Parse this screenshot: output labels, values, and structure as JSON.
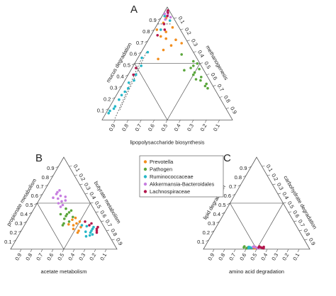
{
  "chart_data": [
    {
      "type": "scatter",
      "panel": "A",
      "subtype": "ternary",
      "axes": {
        "left": {
          "label": "mucus degradation",
          "ticks": [
            "0.1",
            "0.2",
            "0.3",
            "0.4",
            "0.5",
            "0.6",
            "0.7",
            "0.8",
            "0.9"
          ]
        },
        "right": {
          "label": "methanogenesis",
          "ticks": [
            "0.1",
            "0.2",
            "0.3",
            "0.4",
            "0.5",
            "0.6",
            "0.7",
            "0.8",
            "0.9"
          ]
        },
        "bottom": {
          "label": "lipopolysaccharide biosynthesis",
          "ticks": [
            "0.9",
            "0.8",
            "0.7",
            "0.6",
            "0.5",
            "0.4",
            "0.3",
            "0.2",
            "0.1"
          ]
        }
      },
      "grid": true,
      "dashed_reference_lines": true,
      "series": [
        {
          "name": "Prevotella",
          "color": "#f28e1e",
          "points": [
            [
              0.78,
              0.12
            ],
            [
              0.74,
              0.18
            ],
            [
              0.71,
              0.08
            ],
            [
              0.82,
              0.05
            ],
            [
              0.86,
              0.1
            ],
            [
              0.66,
              0.14
            ],
            [
              0.62,
              0.22
            ],
            [
              0.54,
              0.3
            ],
            [
              0.68,
              0.05
            ],
            [
              0.72,
              0.15
            ],
            [
              0.9,
              0.06
            ],
            [
              0.8,
              0.18
            ]
          ]
        },
        {
          "name": "Pathogen",
          "color": "#5aa63c",
          "points": [
            [
              0.52,
              0.04
            ],
            [
              0.48,
              0.06
            ],
            [
              0.45,
              0.03
            ],
            [
              0.42,
              0.08
            ],
            [
              0.38,
              0.05
            ],
            [
              0.35,
              0.07
            ],
            [
              0.32,
              0.04
            ],
            [
              0.3,
              0.06
            ],
            [
              0.28,
              0.05
            ],
            [
              0.4,
              0.1
            ],
            [
              0.5,
              0.02
            ],
            [
              0.46,
              0.09
            ],
            [
              0.36,
              0.1
            ],
            [
              0.44,
              0.15
            ],
            [
              0.58,
              0.1
            ]
          ]
        },
        {
          "name": "Ruminococcaceae",
          "color": "#27b7c8",
          "points": [
            [
              0.92,
              0.06
            ],
            [
              0.88,
              0.04
            ],
            [
              0.8,
              0.15
            ],
            [
              0.6,
              0.35
            ],
            [
              0.55,
              0.42
            ],
            [
              0.48,
              0.46
            ],
            [
              0.4,
              0.54
            ],
            [
              0.35,
              0.58
            ],
            [
              0.33,
              0.63
            ],
            [
              0.25,
              0.7
            ],
            [
              0.18,
              0.78
            ],
            [
              0.12,
              0.84
            ],
            [
              0.1,
              0.86
            ],
            [
              0.08,
              0.9
            ],
            [
              0.06,
              0.92
            ],
            [
              0.22,
              0.74
            ],
            [
              0.28,
              0.66
            ]
          ]
        },
        {
          "name": "Akkermansia-Bacteroidales",
          "color": "#c77ee0",
          "points": [
            [
              0.96,
              0.02
            ],
            [
              0.93,
              0.03
            ],
            [
              0.91,
              0.02
            ],
            [
              0.94,
              0.05
            ],
            [
              0.89,
              0.07
            ]
          ]
        },
        {
          "name": "Lachnospiraceae",
          "color": "#b3174d",
          "points": [
            [
              0.97,
              0.01
            ],
            [
              0.95,
              0.02
            ],
            [
              0.92,
              0.04
            ],
            [
              0.85,
              0.1
            ],
            [
              0.8,
              0.12
            ],
            [
              0.46,
              0.51
            ],
            [
              0.4,
              0.56
            ],
            [
              0.75,
              0.2
            ]
          ]
        }
      ]
    },
    {
      "type": "scatter",
      "panel": "B",
      "subtype": "ternary",
      "axes": {
        "left": {
          "label": "propionate metabolism",
          "ticks": [
            "0.1",
            "0.2",
            "0.3",
            "0.4",
            "0.5",
            "0.6",
            "0.7",
            "0.8",
            "0.9"
          ]
        },
        "right": {
          "label": "butyrate metabolism",
          "ticks": [
            "0.1",
            "0.2",
            "0.3",
            "0.4",
            "0.5",
            "0.6",
            "0.7",
            "0.8",
            "0.9"
          ]
        },
        "bottom": {
          "label": "acetate metabolism",
          "ticks": [
            "0.9",
            "0.8",
            "0.7",
            "0.6",
            "0.5",
            "0.4",
            "0.3",
            "0.2",
            "0.1"
          ]
        }
      },
      "grid": true,
      "series": [
        {
          "name": "Prevotella",
          "color": "#f28e1e",
          "points": [
            [
              0.3,
              0.2
            ],
            [
              0.28,
              0.24
            ],
            [
              0.26,
              0.28
            ],
            [
              0.32,
              0.26
            ],
            [
              0.22,
              0.3
            ],
            [
              0.24,
              0.22
            ],
            [
              0.2,
              0.26
            ],
            [
              0.34,
              0.22
            ],
            [
              0.18,
              0.28
            ],
            [
              0.27,
              0.32
            ]
          ]
        },
        {
          "name": "Pathogen",
          "color": "#5aa63c",
          "points": [
            [
              0.42,
              0.22
            ],
            [
              0.4,
              0.25
            ],
            [
              0.38,
              0.28
            ],
            [
              0.36,
              0.3
            ],
            [
              0.35,
              0.24
            ],
            [
              0.33,
              0.33
            ],
            [
              0.44,
              0.26
            ],
            [
              0.38,
              0.34
            ],
            [
              0.3,
              0.3
            ],
            [
              0.28,
              0.36
            ],
            [
              0.26,
              0.38
            ]
          ]
        },
        {
          "name": "Ruminococcaceae",
          "color": "#27b7c8",
          "points": [
            [
              0.22,
              0.12
            ],
            [
              0.2,
              0.14
            ],
            [
              0.18,
              0.16
            ],
            [
              0.16,
              0.15
            ],
            [
              0.15,
              0.18
            ],
            [
              0.24,
              0.1
            ],
            [
              0.25,
              0.16
            ],
            [
              0.19,
              0.2
            ],
            [
              0.14,
              0.22
            ],
            [
              0.26,
              0.2
            ]
          ]
        },
        {
          "name": "Akkermansia-Bacteroidales",
          "color": "#c77ee0",
          "points": [
            [
              0.62,
              0.25
            ],
            [
              0.6,
              0.27
            ],
            [
              0.58,
              0.24
            ],
            [
              0.55,
              0.28
            ],
            [
              0.52,
              0.26
            ],
            [
              0.5,
              0.3
            ],
            [
              0.48,
              0.27
            ],
            [
              0.64,
              0.22
            ],
            [
              0.56,
              0.32
            ],
            [
              0.46,
              0.3
            ],
            [
              0.57,
              0.2
            ],
            [
              0.53,
              0.22
            ]
          ]
        },
        {
          "name": "Lachnospiraceae",
          "color": "#b3174d",
          "points": [
            [
              0.24,
              0.06
            ],
            [
              0.22,
              0.08
            ],
            [
              0.28,
              0.1
            ],
            [
              0.2,
              0.09
            ],
            [
              0.26,
              0.13
            ],
            [
              0.3,
              0.15
            ],
            [
              0.18,
              0.1
            ]
          ]
        }
      ]
    },
    {
      "type": "scatter",
      "panel": "C",
      "subtype": "ternary",
      "axes": {
        "left": {
          "label": "lipid degradation",
          "ticks": [
            "0.1",
            "0.2",
            "0.3",
            "0.4",
            "0.5",
            "0.6",
            "0.7",
            "0.8",
            "0.9"
          ]
        },
        "right": {
          "label": "carbohydrate degradation",
          "ticks": [
            "0.1",
            "0.2",
            "0.3",
            "0.4",
            "0.5",
            "0.6",
            "0.7",
            "0.8",
            "0.9"
          ]
        },
        "bottom": {
          "label": "amino acid degradation",
          "ticks": [
            "0.9",
            "0.8",
            "0.7",
            "0.6",
            "0.5",
            "0.4",
            "0.3",
            "0.2",
            "0.1"
          ]
        }
      },
      "grid": true,
      "series": [
        {
          "name": "Prevotella",
          "color": "#f28e1e",
          "points": [
            [
              0.015,
              0.53
            ],
            [
              0.02,
              0.52
            ],
            [
              0.01,
              0.51
            ],
            [
              0.025,
              0.5
            ],
            [
              0.018,
              0.55
            ]
          ]
        },
        {
          "name": "Pathogen",
          "color": "#5aa63c",
          "points": [
            [
              0.02,
              0.57
            ],
            [
              0.015,
              0.58
            ],
            [
              0.03,
              0.6
            ],
            [
              0.02,
              0.61
            ],
            [
              0.01,
              0.59
            ]
          ]
        },
        {
          "name": "Ruminococcaceae",
          "color": "#27b7c8",
          "points": [
            [
              0.02,
              0.55
            ],
            [
              0.015,
              0.54
            ],
            [
              0.025,
              0.56
            ],
            [
              0.01,
              0.57
            ]
          ]
        },
        {
          "name": "Akkermansia-Bacteroidales",
          "color": "#c77ee0",
          "points": [
            [
              0.02,
              0.5
            ],
            [
              0.015,
              0.49
            ],
            [
              0.03,
              0.51
            ],
            [
              0.01,
              0.48
            ],
            [
              0.025,
              0.52
            ]
          ]
        },
        {
          "name": "Lachnospiraceae",
          "color": "#b3174d",
          "points": [
            [
              0.02,
              0.45
            ],
            [
              0.015,
              0.44
            ],
            [
              0.03,
              0.46
            ],
            [
              0.01,
              0.43
            ],
            [
              0.025,
              0.42
            ],
            [
              0.02,
              0.47
            ]
          ]
        }
      ]
    }
  ],
  "legend": {
    "placement": "center",
    "entries": [
      {
        "label": "Prevotella",
        "color": "#f28e1e"
      },
      {
        "label": "Pathogen",
        "color": "#5aa63c"
      },
      {
        "label": "Ruminococcaceae",
        "color": "#27b7c8"
      },
      {
        "label": "Akkermansia-Bacteroidales",
        "color": "#c77ee0"
      },
      {
        "label": "Lachnospiraceae",
        "color": "#b3174d"
      }
    ]
  }
}
